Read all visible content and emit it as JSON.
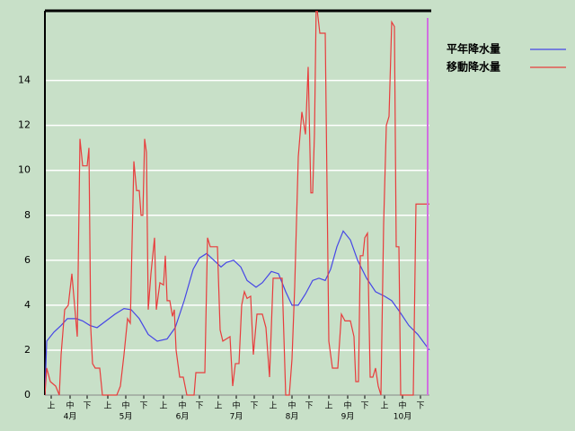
{
  "chart_data": {
    "type": "line",
    "series": [
      {
        "name": "平年降水量",
        "color": "#4646e6",
        "x": [
          0,
          2,
          10,
          18,
          25,
          35,
          42,
          50,
          58,
          68,
          78,
          88,
          96,
          105,
          115,
          125,
          136,
          145,
          155,
          165,
          172,
          180,
          188,
          196,
          202,
          210,
          218,
          225,
          235,
          242,
          252,
          260,
          268,
          275,
          282,
          290,
          298,
          305,
          312,
          318,
          325,
          332,
          340,
          348,
          358,
          368,
          378,
          386,
          395,
          405,
          415,
          428
        ],
        "values": [
          0,
          2.4,
          2.8,
          3.1,
          3.4,
          3.4,
          3.3,
          3.1,
          3.0,
          3.3,
          3.6,
          3.85,
          3.8,
          3.4,
          2.7,
          2.4,
          2.5,
          3.0,
          4.2,
          5.6,
          6.1,
          6.3,
          6.0,
          5.7,
          5.9,
          6.0,
          5.7,
          5.1,
          4.8,
          5.0,
          5.5,
          5.4,
          4.6,
          4.0,
          4.0,
          4.5,
          5.1,
          5.2,
          5.1,
          5.6,
          6.6,
          7.3,
          6.9,
          6.0,
          5.2,
          4.6,
          4.4,
          4.2,
          3.7,
          3.1,
          2.7,
          2.0
        ]
      },
      {
        "name": "移動降水量",
        "color": "#e83c3c",
        "x": [
          0,
          2,
          6,
          12,
          16,
          18,
          22,
          26,
          30,
          33,
          36,
          39,
          42,
          47,
          49,
          51,
          53,
          56,
          61,
          64,
          80,
          84,
          88,
          92,
          95,
          99,
          102,
          105,
          107,
          109,
          111,
          113,
          115,
          118,
          122,
          124,
          128,
          132,
          134,
          136,
          139,
          142,
          144,
          146,
          150,
          154,
          158,
          166,
          168,
          178,
          181,
          184,
          192,
          195,
          198,
          206,
          209,
          212,
          216,
          219,
          222,
          225,
          229,
          232,
          236,
          242,
          246,
          250,
          254,
          264,
          268,
          272,
          275,
          278,
          282,
          286,
          290,
          293,
          296,
          298,
          300,
          302,
          306,
          312,
          316,
          320,
          326,
          330,
          334,
          340,
          344,
          346,
          349,
          351,
          354,
          356,
          359,
          362,
          365,
          368,
          371,
          374,
          377,
          380,
          383,
          386,
          389,
          391,
          394,
          396,
          410,
          413,
          428
        ],
        "values": [
          0,
          1.2,
          0.6,
          0.4,
          0,
          1.8,
          3.8,
          4,
          5.4,
          4,
          2.6,
          11.4,
          10.2,
          10.2,
          11,
          3,
          1.4,
          1.2,
          1.2,
          0,
          0,
          0.4,
          1.8,
          3.4,
          3.2,
          10.4,
          9.1,
          9.1,
          8,
          8,
          11.4,
          10.8,
          3.8,
          5.4,
          7,
          3.8,
          5,
          4.9,
          6.2,
          4.2,
          4.2,
          3.5,
          3.8,
          2,
          0.8,
          0.8,
          0,
          0,
          1,
          1,
          7,
          6.6,
          6.6,
          2.9,
          2.4,
          2.6,
          0.4,
          1.4,
          1.4,
          4,
          4.6,
          4.3,
          4.4,
          1.8,
          3.6,
          3.6,
          3,
          0.8,
          5.2,
          5.2,
          0,
          0,
          1.6,
          4.8,
          10.6,
          12.6,
          11.6,
          14.6,
          9,
          9,
          11.6,
          17.5,
          16.1,
          16.1,
          2.4,
          1.2,
          1.2,
          3.6,
          3.3,
          3.3,
          2.6,
          0.6,
          0.6,
          6.2,
          6.2,
          7,
          7.2,
          0.8,
          0.8,
          1.2,
          0.4,
          0,
          7.6,
          12,
          12.4,
          16.6,
          16.4,
          6.6,
          6.6,
          0,
          0,
          8.5,
          8.5
        ]
      }
    ],
    "xlim": [
      0,
      428
    ],
    "xticks": [
      {
        "value": 7,
        "label": "上"
      },
      {
        "value": 28,
        "label": "中"
      },
      {
        "value": 47,
        "label": "下"
      },
      {
        "value": 70,
        "label": "上"
      },
      {
        "value": 90,
        "label": "中"
      },
      {
        "value": 110,
        "label": "下"
      },
      {
        "value": 132,
        "label": "上"
      },
      {
        "value": 153,
        "label": "中"
      },
      {
        "value": 172,
        "label": "下"
      },
      {
        "value": 193,
        "label": "上"
      },
      {
        "value": 213,
        "label": "中"
      },
      {
        "value": 233,
        "label": "下"
      },
      {
        "value": 254,
        "label": "上"
      },
      {
        "value": 275,
        "label": "中"
      },
      {
        "value": 294,
        "label": "下"
      },
      {
        "value": 316,
        "label": "上"
      },
      {
        "value": 337,
        "label": "中"
      },
      {
        "value": 356,
        "label": "下"
      },
      {
        "value": 378,
        "label": "上"
      },
      {
        "value": 398,
        "label": "中"
      },
      {
        "value": 418,
        "label": "下"
      }
    ],
    "month_labels": [
      {
        "value": 28,
        "label": "4月"
      },
      {
        "value": 90,
        "label": "5月"
      },
      {
        "value": 153,
        "label": "6月"
      },
      {
        "value": 213,
        "label": "7月"
      },
      {
        "value": 275,
        "label": "8月"
      },
      {
        "value": 337,
        "label": "9月"
      },
      {
        "value": 398,
        "label": "10月"
      }
    ],
    "current_x": 426,
    "current_color": "#d070e0",
    "ylim": [
      0,
      17.1
    ],
    "yticks": [
      0,
      2,
      4,
      6,
      8,
      10,
      12,
      14
    ],
    "grid": true,
    "legend": "upper right"
  }
}
